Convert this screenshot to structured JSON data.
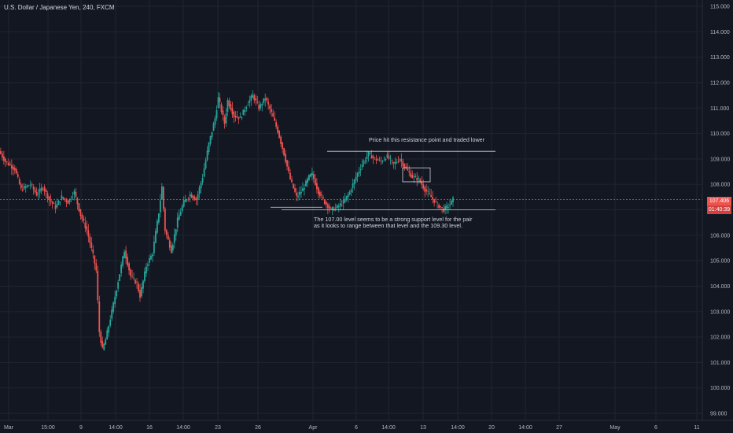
{
  "header": {
    "symbol_title": "U.S. Dollar / Japanese Yen, 240, FXCM"
  },
  "price_labels": {
    "last_price": "107.406",
    "countdown": "01:40:39"
  },
  "annotations": {
    "resistance_note": "Price hit this resistance point and traded lower",
    "support_note_line1": "The 107.00 level seems to be a strong support level for the pair",
    "support_note_line2": "as it looks to range between that level and the 109.30 level."
  },
  "colors": {
    "background": "#131722",
    "grid": "#1f2430",
    "up": "#26a69a",
    "down": "#ef5350",
    "axis_text": "#b2b5be",
    "drawing": "#d1d4dc",
    "price_line": "#ef5350"
  },
  "chart_data": {
    "type": "candlestick",
    "title": "U.S. Dollar / Japanese Yen, 240, FXCM",
    "y_axis_side": "right",
    "ylim": [
      98.95,
      115.2
    ],
    "y_ticks": [
      "115.000",
      "114.000",
      "113.000",
      "112.000",
      "111.000",
      "110.000",
      "109.000",
      "108.000",
      "107.000",
      "106.000",
      "105.000",
      "104.000",
      "103.000",
      "102.000",
      "101.000",
      "100.000",
      "99.000"
    ],
    "x_tick_labels": [
      "Mar",
      "15:00",
      "9",
      "14:00",
      "16",
      "14:00",
      "23",
      "26",
      "Apr",
      "6",
      "14:00",
      "13",
      "14:00",
      "20",
      "14:00",
      "27",
      "May",
      "6",
      "11"
    ],
    "grid": true,
    "last_price": 107.406,
    "price_path": [
      [
        0,
        109.3
      ],
      [
        2,
        108.9
      ],
      [
        5,
        108.6
      ],
      [
        7,
        107.8
      ],
      [
        10,
        108.0
      ],
      [
        12,
        107.6
      ],
      [
        14,
        107.9
      ],
      [
        16,
        107.4
      ],
      [
        18,
        107.1
      ],
      [
        20,
        107.5
      ],
      [
        22,
        107.3
      ],
      [
        24,
        107.7
      ],
      [
        26,
        106.8
      ],
      [
        28,
        106.2
      ],
      [
        30,
        105.2
      ],
      [
        31,
        104.6
      ],
      [
        32,
        102.2
      ],
      [
        33,
        101.5
      ],
      [
        34,
        101.9
      ],
      [
        36,
        103.0
      ],
      [
        38,
        104.2
      ],
      [
        40,
        105.4
      ],
      [
        42,
        104.4
      ],
      [
        44,
        104.1
      ],
      [
        45,
        103.6
      ],
      [
        47,
        104.8
      ],
      [
        49,
        105.3
      ],
      [
        51,
        106.9
      ],
      [
        52,
        107.9
      ],
      [
        53,
        106.2
      ],
      [
        55,
        105.4
      ],
      [
        57,
        106.6
      ],
      [
        59,
        107.3
      ],
      [
        61,
        107.6
      ],
      [
        63,
        107.4
      ],
      [
        65,
        108.3
      ],
      [
        67,
        109.6
      ],
      [
        69,
        110.6
      ],
      [
        70,
        111.4
      ],
      [
        72,
        110.4
      ],
      [
        73,
        111.3
      ],
      [
        75,
        110.7
      ],
      [
        77,
        110.6
      ],
      [
        79,
        111.1
      ],
      [
        81,
        111.5
      ],
      [
        83,
        111.0
      ],
      [
        85,
        111.4
      ],
      [
        87,
        110.8
      ],
      [
        89,
        110.1
      ],
      [
        91,
        109.2
      ],
      [
        93,
        108.2
      ],
      [
        95,
        107.5
      ],
      [
        97,
        107.8
      ],
      [
        99,
        108.3
      ],
      [
        100,
        108.4
      ],
      [
        102,
        107.7
      ],
      [
        104,
        107.3
      ],
      [
        106,
        107.0
      ],
      [
        108,
        107.1
      ],
      [
        110,
        107.3
      ],
      [
        112,
        107.7
      ],
      [
        114,
        108.3
      ],
      [
        116,
        108.8
      ],
      [
        118,
        109.2
      ],
      [
        120,
        109.0
      ],
      [
        122,
        108.9
      ],
      [
        124,
        109.1
      ],
      [
        126,
        108.8
      ],
      [
        128,
        109.0
      ],
      [
        130,
        108.6
      ],
      [
        132,
        108.3
      ],
      [
        134,
        108.2
      ],
      [
        136,
        107.8
      ],
      [
        138,
        107.5
      ],
      [
        140,
        107.2
      ],
      [
        142,
        107.0
      ],
      [
        144,
        107.2
      ],
      [
        145,
        107.406
      ]
    ],
    "horizontal_levels": [
      {
        "price": 109.3,
        "label": "resistance"
      },
      {
        "price": 107.0,
        "label": "support"
      },
      {
        "price": 107.406,
        "label": "last price"
      }
    ]
  }
}
